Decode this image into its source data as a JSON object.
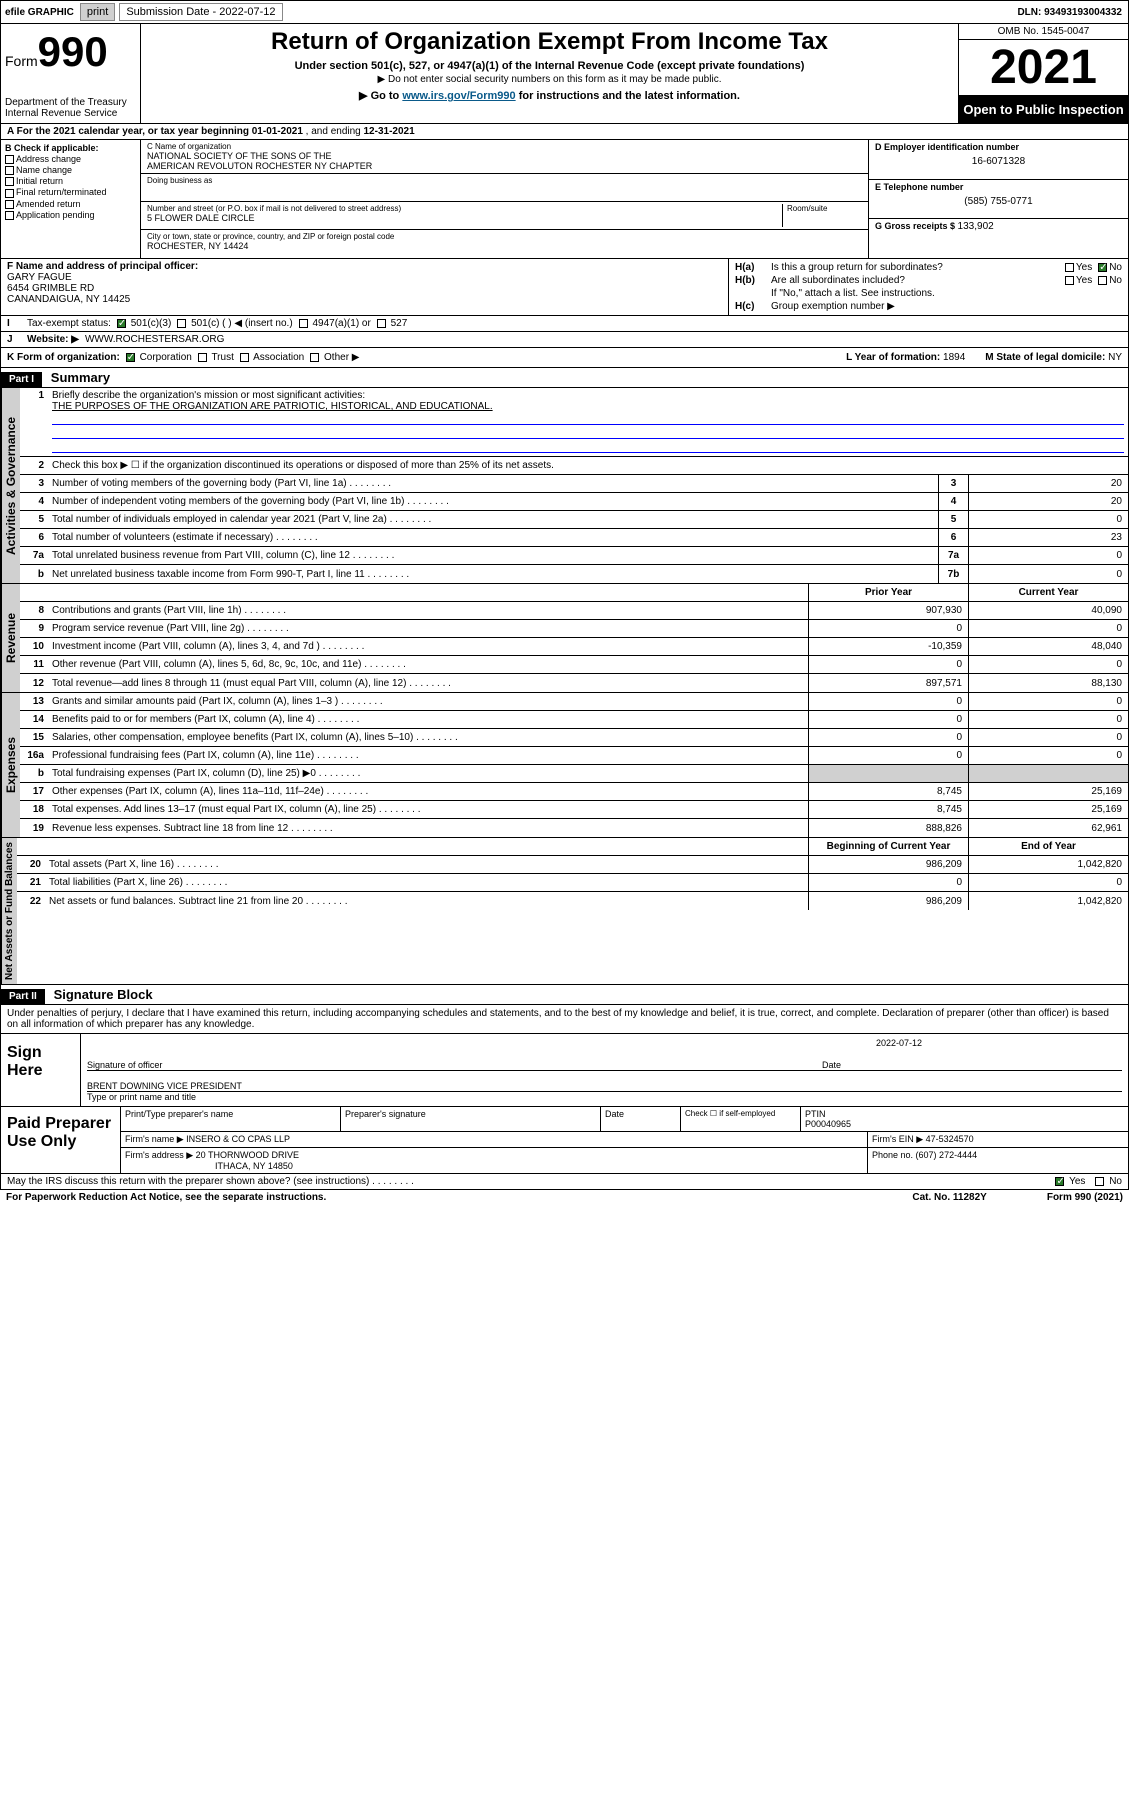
{
  "topbar": {
    "efile": "efile GRAPHIC",
    "print": "print",
    "subdate_label": "Submission Date - ",
    "subdate": "2022-07-12",
    "dln_label": "DLN: ",
    "dln": "93493193004332"
  },
  "header": {
    "form_prefix": "Form",
    "form_num": "990",
    "dept": "Department of the Treasury\nInternal Revenue Service",
    "title": "Return of Organization Exempt From Income Tax",
    "sub": "Under section 501(c), 527, or 4947(a)(1) of the Internal Revenue Code (except private foundations)",
    "note1": "▶ Do not enter social security numbers on this form as it may be made public.",
    "note2_pre": "▶ Go to ",
    "note2_link": "www.irs.gov/Form990",
    "note2_post": " for instructions and the latest information.",
    "omb": "OMB No. 1545-0047",
    "year": "2021",
    "inspect": "Open to Public Inspection"
  },
  "row_a": {
    "label": "A For the 2021 calendar year, or tax year beginning ",
    "begin": "01-01-2021",
    "mid": " , and ending ",
    "end": "12-31-2021"
  },
  "col_b": {
    "title": "B Check if applicable:",
    "items": [
      "Address change",
      "Name change",
      "Initial return",
      "Final return/terminated",
      "Amended return",
      "Application pending"
    ]
  },
  "col_c": {
    "name_lbl": "C Name of organization",
    "name1": "NATIONAL SOCIETY OF THE SONS OF THE",
    "name2": "AMERICAN REVOLUTON ROCHESTER NY CHAPTER",
    "dba_lbl": "Doing business as",
    "dba": "",
    "addr_lbl": "Number and street (or P.O. box if mail is not delivered to street address)",
    "room_lbl": "Room/suite",
    "addr": "5 FLOWER DALE CIRCLE",
    "city_lbl": "City or town, state or province, country, and ZIP or foreign postal code",
    "city": "ROCHESTER, NY  14424"
  },
  "col_d": {
    "ein_lbl": "D Employer identification number",
    "ein": "16-6071328",
    "tel_lbl": "E Telephone number",
    "tel": "(585) 755-0771",
    "gross_lbl": "G Gross receipts $ ",
    "gross": "133,902"
  },
  "col_f": {
    "lbl": "F Name and address of principal officer:",
    "name": "GARY FAGUE",
    "addr": "6454 GRIMBLE RD",
    "city": "CANANDAIGUA, NY  14425"
  },
  "col_h": {
    "ha_lbl": "H(a)",
    "ha_txt": "Is this a group return for subordinates?",
    "ha_yes": "Yes",
    "ha_no": "No",
    "hb_lbl": "H(b)",
    "hb_txt": "Are all subordinates included?",
    "hb_note": "If \"No,\" attach a list. See instructions.",
    "hc_lbl": "H(c)",
    "hc_txt": "Group exemption number ▶"
  },
  "row_i": {
    "lbl": "I",
    "txt": "Tax-exempt status:",
    "opts": [
      "501(c)(3)",
      "501(c) (  ) ◀ (insert no.)",
      "4947(a)(1) or",
      "527"
    ]
  },
  "row_j": {
    "lbl": "J",
    "txt": "Website: ▶",
    "val": "WWW.ROCHESTERSAR.ORG"
  },
  "row_k": {
    "lbl": "K Form of organization:",
    "opts": [
      "Corporation",
      "Trust",
      "Association",
      "Other ▶"
    ],
    "l_lbl": "L Year of formation: ",
    "l_val": "1894",
    "m_lbl": "M State of legal domicile: ",
    "m_val": "NY"
  },
  "part1": {
    "hdr": "Part I",
    "title": "Summary",
    "q1_lbl": "1",
    "q1_txt": "Briefly describe the organization's mission or most significant activities:",
    "q1_val": "THE PURPOSES OF THE ORGANIZATION ARE PATRIOTIC, HISTORICAL, AND EDUCATIONAL.",
    "q2_lbl": "2",
    "q2_txt": "Check this box ▶ ☐ if the organization discontinued its operations or disposed of more than 25% of its net assets.",
    "gov_tab": "Activities & Governance",
    "rev_tab": "Revenue",
    "exp_tab": "Expenses",
    "net_tab": "Net Assets or Fund Balances",
    "lines_gov": [
      {
        "n": "3",
        "t": "Number of voting members of the governing body (Part VI, line 1a)",
        "box": "3",
        "v": "20"
      },
      {
        "n": "4",
        "t": "Number of independent voting members of the governing body (Part VI, line 1b)",
        "box": "4",
        "v": "20"
      },
      {
        "n": "5",
        "t": "Total number of individuals employed in calendar year 2021 (Part V, line 2a)",
        "box": "5",
        "v": "0"
      },
      {
        "n": "6",
        "t": "Total number of volunteers (estimate if necessary)",
        "box": "6",
        "v": "23"
      },
      {
        "n": "7a",
        "t": "Total unrelated business revenue from Part VIII, column (C), line 12",
        "box": "7a",
        "v": "0"
      },
      {
        "n": "b",
        "t": "Net unrelated business taxable income from Form 990-T, Part I, line 11",
        "box": "7b",
        "v": "0"
      }
    ],
    "col_py": "Prior Year",
    "col_cy": "Current Year",
    "lines_rev": [
      {
        "n": "8",
        "t": "Contributions and grants (Part VIII, line 1h)",
        "py": "907,930",
        "cy": "40,090"
      },
      {
        "n": "9",
        "t": "Program service revenue (Part VIII, line 2g)",
        "py": "0",
        "cy": "0"
      },
      {
        "n": "10",
        "t": "Investment income (Part VIII, column (A), lines 3, 4, and 7d )",
        "py": "-10,359",
        "cy": "48,040"
      },
      {
        "n": "11",
        "t": "Other revenue (Part VIII, column (A), lines 5, 6d, 8c, 9c, 10c, and 11e)",
        "py": "0",
        "cy": "0"
      },
      {
        "n": "12",
        "t": "Total revenue—add lines 8 through 11 (must equal Part VIII, column (A), line 12)",
        "py": "897,571",
        "cy": "88,130"
      }
    ],
    "lines_exp": [
      {
        "n": "13",
        "t": "Grants and similar amounts paid (Part IX, column (A), lines 1–3 )",
        "py": "0",
        "cy": "0"
      },
      {
        "n": "14",
        "t": "Benefits paid to or for members (Part IX, column (A), line 4)",
        "py": "0",
        "cy": "0"
      },
      {
        "n": "15",
        "t": "Salaries, other compensation, employee benefits (Part IX, column (A), lines 5–10)",
        "py": "0",
        "cy": "0"
      },
      {
        "n": "16a",
        "t": "Professional fundraising fees (Part IX, column (A), line 11e)",
        "py": "0",
        "cy": "0"
      },
      {
        "n": "b",
        "t": "Total fundraising expenses (Part IX, column (D), line 25) ▶0",
        "py": "",
        "cy": "",
        "shade": true
      },
      {
        "n": "17",
        "t": "Other expenses (Part IX, column (A), lines 11a–11d, 11f–24e)",
        "py": "8,745",
        "cy": "25,169"
      },
      {
        "n": "18",
        "t": "Total expenses. Add lines 13–17 (must equal Part IX, column (A), line 25)",
        "py": "8,745",
        "cy": "25,169"
      },
      {
        "n": "19",
        "t": "Revenue less expenses. Subtract line 18 from line 12",
        "py": "888,826",
        "cy": "62,961"
      }
    ],
    "col_bcy": "Beginning of Current Year",
    "col_eoy": "End of Year",
    "lines_net": [
      {
        "n": "20",
        "t": "Total assets (Part X, line 16)",
        "py": "986,209",
        "cy": "1,042,820"
      },
      {
        "n": "21",
        "t": "Total liabilities (Part X, line 26)",
        "py": "0",
        "cy": "0"
      },
      {
        "n": "22",
        "t": "Net assets or fund balances. Subtract line 21 from line 20",
        "py": "986,209",
        "cy": "1,042,820"
      }
    ]
  },
  "part2": {
    "hdr": "Part II",
    "title": "Signature Block",
    "penalties": "Under penalties of perjury, I declare that I have examined this return, including accompanying schedules and statements, and to the best of my knowledge and belief, it is true, correct, and complete. Declaration of preparer (other than officer) is based on all information of which preparer has any knowledge."
  },
  "sign": {
    "here": "Sign Here",
    "sig_lbl": "Signature of officer",
    "date_lbl": "Date",
    "date": "2022-07-12",
    "name": "BRENT DOWNING  VICE PRESIDENT",
    "name_lbl": "Type or print name and title"
  },
  "prep": {
    "title": "Paid Preparer Use Only",
    "pt_name_lbl": "Print/Type preparer's name",
    "pt_name": "",
    "sig_lbl": "Preparer's signature",
    "date_lbl": "Date",
    "check_lbl": "Check ☐ if self-employed",
    "ptin_lbl": "PTIN",
    "ptin": "P00040965",
    "firm_name_lbl": "Firm's name    ▶ ",
    "firm_name": "INSERO & CO CPAS LLP",
    "firm_ein_lbl": "Firm's EIN ▶ ",
    "firm_ein": "47-5324570",
    "firm_addr_lbl": "Firm's address ▶ ",
    "firm_addr1": "20 THORNWOOD DRIVE",
    "firm_addr2": "ITHACA, NY  14850",
    "phone_lbl": "Phone no. ",
    "phone": "(607) 272-4444"
  },
  "footer": {
    "discuss": "May the IRS discuss this return with the preparer shown above? (see instructions)",
    "yes": "Yes",
    "no": "No",
    "pra": "For Paperwork Reduction Act Notice, see the separate instructions.",
    "cat": "Cat. No. 11282Y",
    "form": "Form 990 (2021)"
  }
}
